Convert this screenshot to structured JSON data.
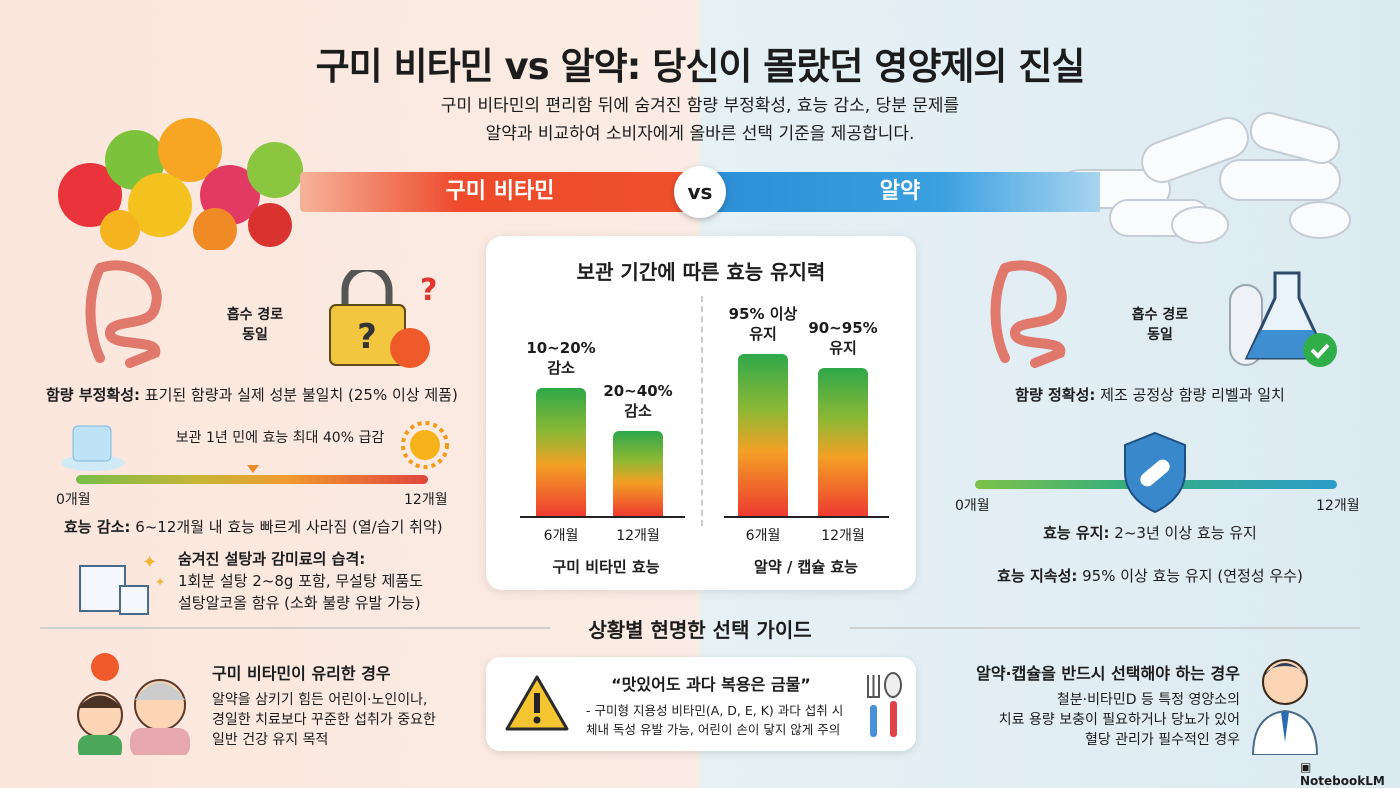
{
  "title": "구미 비타민 vs 알약: 당신이 몰랐던 영양제의 진실",
  "subtitle": [
    "구미 비타민의 편리함 뒤에 숨겨진 함량 부정확성, 효능 감소, 당분 문제를",
    "알약과 비교하여 소비자에게 올바른 선택 기준을 제공합니다."
  ],
  "banner": {
    "left": "구미 비타민",
    "vs": "vs",
    "right": "알약"
  },
  "colors": {
    "gummy": "#ee4a2b",
    "pill": "#2b8ed6",
    "bg_left": "#fbe6dc",
    "bg_right": "#e6f1f5"
  },
  "gummy": {
    "absorption": [
      "흡수 경로",
      "동일"
    ],
    "accuracy_label": "함량 부정확성:",
    "accuracy_text": " 표기된 함량과 실제 성분 불일치 (25% 이상 제품)",
    "timeline_note": "보관 1년 민에 효능 최대 40% 급감",
    "timeline_start": "0개월",
    "timeline_end": "12개월",
    "decay_label": "효능 감소:",
    "decay_text": " 6~12개월 내 효능 빠르게 사라짐 (열/습기 취약)",
    "sugar_title": "숨겨진 설탕과 감미료의 습격:",
    "sugar_lines": [
      "1회분 설탕 2~8g 포함, 무설탕 제품도",
      "설탕알코올 함유 (소화 불량 유발 가능)"
    ],
    "icons": [
      "intestine-icon",
      "lock-question-icon",
      "ice-cube-icon",
      "sun-icon",
      "sugar-cube-icon"
    ]
  },
  "pill": {
    "absorption": [
      "흡수 경로",
      "동일"
    ],
    "accuracy_label": "함량 정확성:",
    "accuracy_text": " 제조 공정상 함량 리벨과 일치",
    "timeline_start": "0개월",
    "timeline_end": "12개월",
    "retain_label": "효능 유지:",
    "retain_text": " 2~3년 이상 효능 유지",
    "durability_label": "효능 지속성:",
    "durability_text": " 95% 이상 효능 유지 (연정성 우수)",
    "icons": [
      "intestine-icon",
      "flask-check-icon",
      "shield-pill-icon"
    ]
  },
  "chart_data": {
    "type": "bar",
    "title": "보관 기간에 따른 효능 유지력",
    "groups": [
      {
        "name": "구미 비타민 효능",
        "categories": [
          "6개월",
          "12개월"
        ],
        "values": [
          85,
          70
        ],
        "labels": [
          [
            "10~20%",
            "감소"
          ],
          [
            "20~40%",
            "감소"
          ]
        ]
      },
      {
        "name": "알약 / 캡슐 효능",
        "categories": [
          "6개월",
          "12개월"
        ],
        "values": [
          97,
          92
        ],
        "labels": [
          [
            "95% 이상",
            "유지"
          ],
          [
            "90~95%",
            "유지"
          ]
        ]
      }
    ],
    "ylim": [
      40,
      100
    ],
    "grid": false
  },
  "guide": {
    "title": "상황별 현명한 선택 가이드",
    "gummy_case": {
      "title": "구미 비타민이 유리한 경우",
      "lines": [
        "알약을 삼키기 힘든 어린이·노인이나,",
        "경일한 치료보다 꾸준한 섭취가 중요한",
        "일반 건강 유지 목적"
      ]
    },
    "warning": {
      "title": "“맛있어도 과다 복용은 금물”",
      "lines": [
        "- 구미형 지용성 비타민(A, D, E, K) 과다 섭취 시",
        "체내 독성 유발 가능, 어린이 손이 닿지 않게 주의"
      ]
    },
    "pill_case": {
      "title": "알약·캡슐을 반드시 선택해야 하는 경우",
      "lines": [
        "철분·비타민D 등 특정 영양소의",
        "치료 용량 보충이 필요하거나 당뇨가 있어",
        "혈당 관리가 필수적인 경우"
      ]
    }
  },
  "watermark": "NotebookLM"
}
